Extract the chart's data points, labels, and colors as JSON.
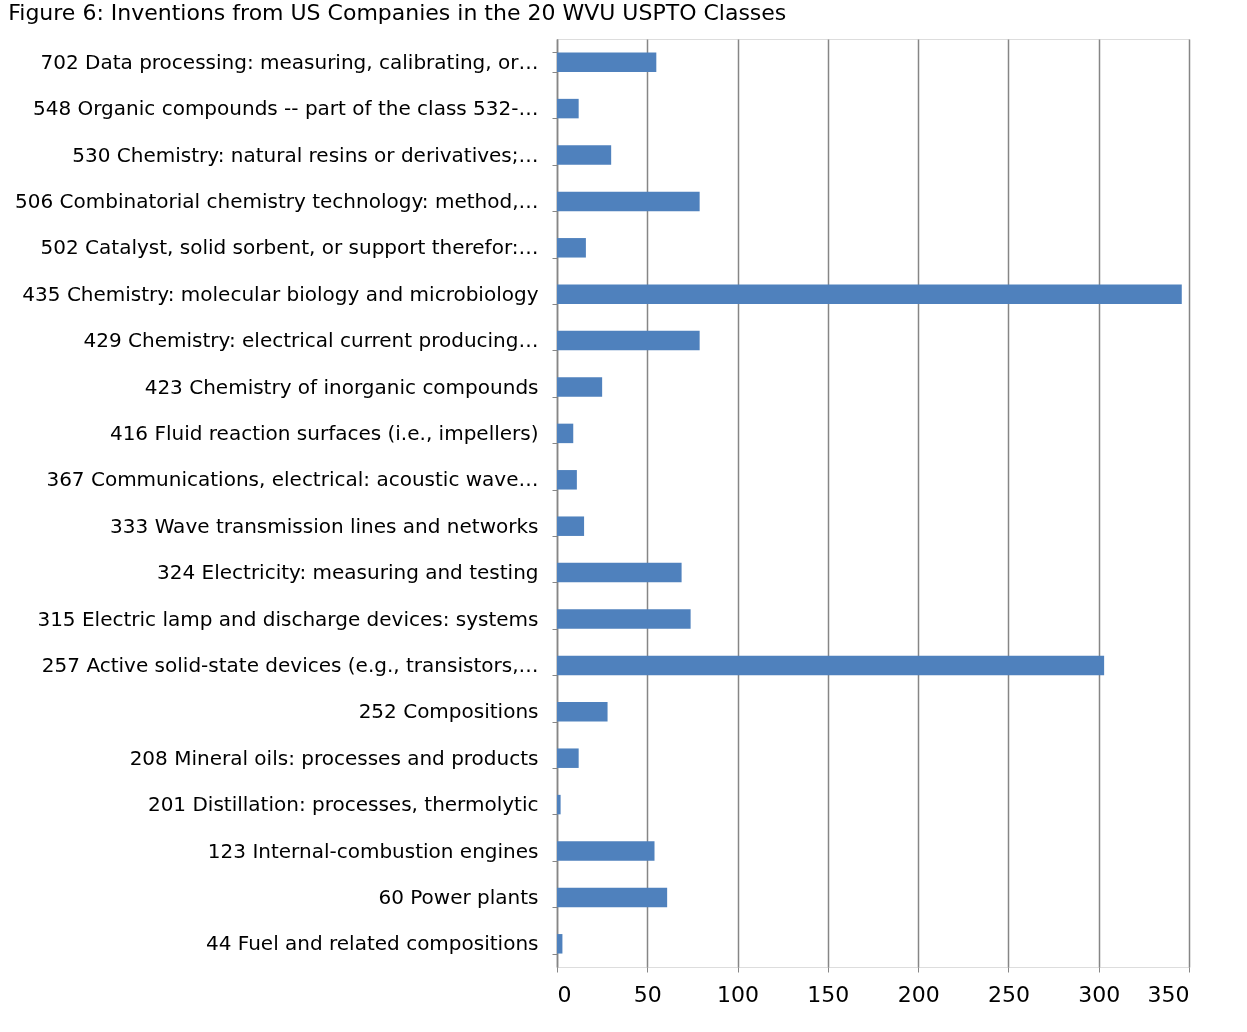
{
  "chart_data": {
    "type": "bar",
    "orientation": "horizontal",
    "title": "Figure 6: Inventions from US Companies in the 20 WVU USPTO Classes",
    "categories": [
      "702  Data processing: measuring, calibrating, or…",
      "548  Organic compounds -- part of the class 532-…",
      "530  Chemistry: natural resins or derivatives;…",
      "506  Combinatorial chemistry technology: method,…",
      "502  Catalyst, solid sorbent, or support therefor:…",
      "435  Chemistry: molecular biology and microbiology",
      "429  Chemistry: electrical current producing…",
      "423  Chemistry of inorganic compounds",
      "416  Fluid reaction surfaces (i.e., impellers)",
      "367  Communications, electrical: acoustic wave…",
      "333  Wave transmission lines and networks",
      "324  Electricity: measuring and testing",
      "315  Electric lamp and discharge devices: systems",
      "257  Active solid-state devices (e.g., transistors,…",
      "252  Compositions",
      "208  Mineral oils: processes and products",
      "201  Distillation: processes, thermolytic",
      "123  Internal-combustion engines",
      "60  Power plants",
      "44  Fuel and related compositions"
    ],
    "values": [
      55,
      12,
      30,
      79,
      16,
      346,
      79,
      25,
      9,
      11,
      15,
      69,
      74,
      303,
      28,
      12,
      2,
      54,
      61,
      3
    ],
    "color": "#4f81bd",
    "xlim": [
      0,
      350
    ],
    "xticks": [
      0,
      50,
      100,
      150,
      200,
      250,
      300,
      350
    ],
    "grid": "x"
  }
}
